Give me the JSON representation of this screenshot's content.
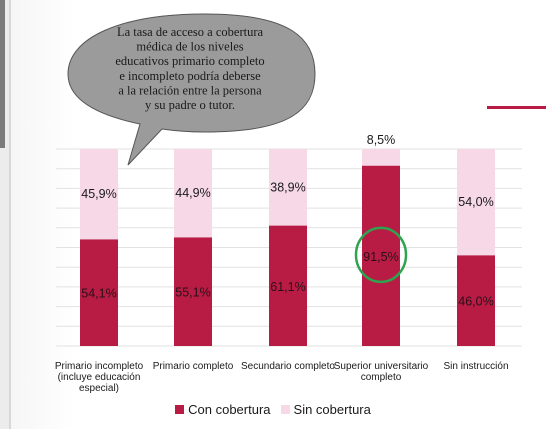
{
  "colors": {
    "con": "#b81c45",
    "sin": "#f6d8e6",
    "grid": "#e2e2e2",
    "highlight": "#2ea44f",
    "callout_fill": "#9b9b9b"
  },
  "callout": {
    "lines": [
      "La tasa de acceso a cobertura",
      "médica de los niveles",
      "educativos primario completo",
      "e incompleto podría deberse",
      "a la relación entre la persona",
      "y su padre o tutor."
    ]
  },
  "chart_data": {
    "type": "bar",
    "stacked": true,
    "percent_stacked": true,
    "categories": [
      [
        "Primario incompleto",
        "(incluye educación",
        "especial)"
      ],
      [
        "Primario completo"
      ],
      [
        "Secundario completo"
      ],
      [
        "Superior universitario",
        "completo"
      ],
      [
        "Sin instrucción"
      ]
    ],
    "series": [
      {
        "name": "Con cobertura",
        "values": [
          54.1,
          55.1,
          61.1,
          91.5,
          46.0
        ],
        "labels": [
          "54,1%",
          "55,1%",
          "61,1%",
          "91,5%",
          "46,0%"
        ]
      },
      {
        "name": "Sin cobertura",
        "values": [
          45.9,
          44.9,
          38.9,
          8.5,
          54.0
        ],
        "labels": [
          "45,9%",
          "44,9%",
          "38,9%",
          "8,5%",
          "54,0%"
        ]
      }
    ],
    "ylim": [
      0,
      100
    ],
    "grid": true,
    "highlighted_category": 3,
    "legend_position": "bottom"
  }
}
